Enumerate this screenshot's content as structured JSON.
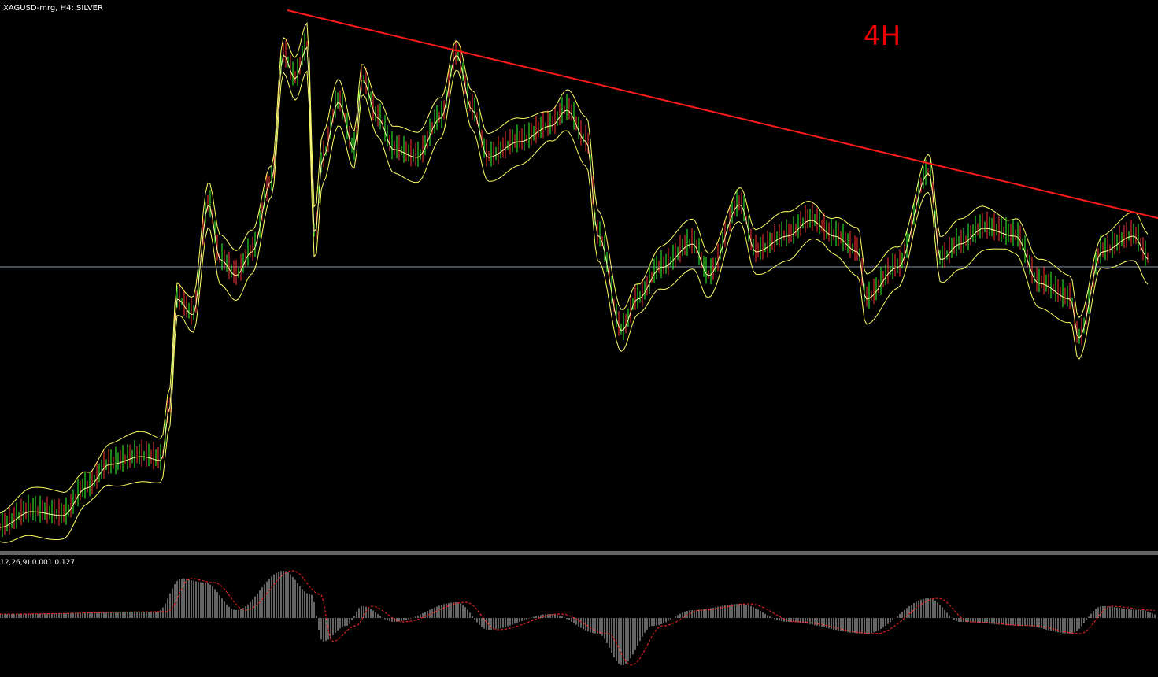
{
  "header": {
    "title": "XAGUSD-mrg, H4:  SILVER"
  },
  "annotation": "4H",
  "indicator": {
    "label": "12,26,9) 0.001 0.127"
  }
}
